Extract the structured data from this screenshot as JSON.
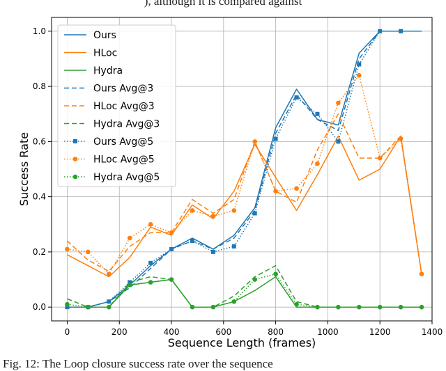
{
  "page": {
    "top_text": "), although it is compared against",
    "caption": "Fig. 12: The Loop closure success rate over the sequence"
  },
  "chart_data": {
    "type": "line",
    "xlabel": "Sequence Length (frames)",
    "ylabel": "Success Rate",
    "xlim": [
      -60,
      1400
    ],
    "ylim": [
      -0.05,
      1.05
    ],
    "xticks": [
      0,
      200,
      400,
      600,
      800,
      1000,
      1200,
      1400
    ],
    "yticks": [
      0.0,
      0.2,
      0.4,
      0.6,
      0.8,
      1.0
    ],
    "grid": true,
    "legend_position": "top-left",
    "colors": {
      "ours": "#1f77b4",
      "hloc": "#ff7f0e",
      "hydra": "#2ca02c"
    },
    "series": [
      {
        "name": "Ours",
        "color": "#1f77b4",
        "style": "solid",
        "marker": "none",
        "points": [
          [
            0,
            0.0
          ],
          [
            80,
            0.0
          ],
          [
            160,
            0.02
          ],
          [
            240,
            0.08
          ],
          [
            320,
            0.15
          ],
          [
            400,
            0.21
          ],
          [
            480,
            0.25
          ],
          [
            560,
            0.21
          ],
          [
            640,
            0.26
          ],
          [
            720,
            0.36
          ],
          [
            800,
            0.65
          ],
          [
            880,
            0.79
          ],
          [
            960,
            0.68
          ],
          [
            1040,
            0.66
          ],
          [
            1120,
            0.92
          ],
          [
            1200,
            1.0
          ],
          [
            1280,
            1.0
          ],
          [
            1360,
            1.0
          ]
        ]
      },
      {
        "name": "HLoc",
        "color": "#ff7f0e",
        "style": "solid",
        "marker": "none",
        "points": [
          [
            0,
            0.19
          ],
          [
            80,
            0.15
          ],
          [
            160,
            0.11
          ],
          [
            240,
            0.18
          ],
          [
            320,
            0.29
          ],
          [
            400,
            0.26
          ],
          [
            480,
            0.37
          ],
          [
            560,
            0.32
          ],
          [
            640,
            0.42
          ],
          [
            720,
            0.59
          ],
          [
            800,
            0.47
          ],
          [
            880,
            0.35
          ],
          [
            960,
            0.48
          ],
          [
            1040,
            0.62
          ],
          [
            1120,
            0.46
          ],
          [
            1200,
            0.5
          ],
          [
            1280,
            0.62
          ],
          [
            1360,
            0.12
          ]
        ]
      },
      {
        "name": "Hydra",
        "color": "#2ca02c",
        "style": "solid",
        "marker": "none",
        "points": [
          [
            0,
            0.0
          ],
          [
            80,
            0.0
          ],
          [
            160,
            0.0
          ],
          [
            240,
            0.08
          ],
          [
            320,
            0.09
          ],
          [
            400,
            0.1
          ],
          [
            480,
            0.0
          ],
          [
            560,
            0.0
          ],
          [
            640,
            0.02
          ],
          [
            720,
            0.06
          ],
          [
            800,
            0.11
          ],
          [
            880,
            0.0
          ],
          [
            960,
            0.0
          ],
          [
            1040,
            0.0
          ],
          [
            1120,
            0.0
          ],
          [
            1200,
            0.0
          ],
          [
            1280,
            0.0
          ],
          [
            1360,
            0.0
          ]
        ]
      },
      {
        "name": "Ours Avg@3",
        "color": "#1f77b4",
        "style": "dashed",
        "marker": "none",
        "points": [
          [
            0,
            0.0
          ],
          [
            80,
            0.0
          ],
          [
            160,
            0.02
          ],
          [
            240,
            0.07
          ],
          [
            320,
            0.14
          ],
          [
            400,
            0.21
          ],
          [
            480,
            0.24
          ],
          [
            560,
            0.21
          ],
          [
            640,
            0.25
          ],
          [
            720,
            0.35
          ],
          [
            800,
            0.63
          ],
          [
            880,
            0.77
          ],
          [
            960,
            0.68
          ],
          [
            1040,
            0.64
          ],
          [
            1120,
            0.9
          ],
          [
            1200,
            1.0
          ],
          [
            1280,
            1.0
          ],
          [
            1360,
            1.0
          ]
        ]
      },
      {
        "name": "HLoc Avg@3",
        "color": "#ff7f0e",
        "style": "dashed",
        "marker": "none",
        "points": [
          [
            0,
            0.24
          ],
          [
            80,
            0.17
          ],
          [
            160,
            0.13
          ],
          [
            240,
            0.22
          ],
          [
            320,
            0.27
          ],
          [
            400,
            0.27
          ],
          [
            480,
            0.39
          ],
          [
            560,
            0.34
          ],
          [
            640,
            0.39
          ],
          [
            720,
            0.6
          ],
          [
            800,
            0.42
          ],
          [
            880,
            0.38
          ],
          [
            960,
            0.57
          ],
          [
            1040,
            0.7
          ],
          [
            1120,
            0.54
          ],
          [
            1200,
            0.54
          ],
          [
            1280,
            0.62
          ],
          [
            1360,
            0.12
          ]
        ]
      },
      {
        "name": "Hydra Avg@3",
        "color": "#2ca02c",
        "style": "dashed",
        "marker": "none",
        "points": [
          [
            0,
            0.03
          ],
          [
            80,
            0.0
          ],
          [
            160,
            0.0
          ],
          [
            240,
            0.09
          ],
          [
            320,
            0.11
          ],
          [
            400,
            0.1
          ],
          [
            480,
            0.0
          ],
          [
            560,
            0.0
          ],
          [
            640,
            0.04
          ],
          [
            720,
            0.11
          ],
          [
            800,
            0.15
          ],
          [
            880,
            0.02
          ],
          [
            960,
            0.0
          ],
          [
            1040,
            0.0
          ],
          [
            1120,
            0.0
          ],
          [
            1200,
            0.0
          ],
          [
            1280,
            0.0
          ],
          [
            1360,
            0.0
          ]
        ]
      },
      {
        "name": "Ours Avg@5",
        "color": "#1f77b4",
        "style": "dotted",
        "marker": "square",
        "points": [
          [
            0,
            0.0
          ],
          [
            80,
            0.0
          ],
          [
            160,
            0.02
          ],
          [
            240,
            0.09
          ],
          [
            320,
            0.16
          ],
          [
            400,
            0.21
          ],
          [
            480,
            0.24
          ],
          [
            560,
            0.2
          ],
          [
            640,
            0.22
          ],
          [
            720,
            0.34
          ],
          [
            800,
            0.61
          ],
          [
            880,
            0.76
          ],
          [
            960,
            0.7
          ],
          [
            1040,
            0.6
          ],
          [
            1120,
            0.88
          ],
          [
            1200,
            1.0
          ],
          [
            1280,
            1.0
          ]
        ]
      },
      {
        "name": "HLoc Avg@5",
        "color": "#ff7f0e",
        "style": "dotted",
        "marker": "circle",
        "points": [
          [
            0,
            0.21
          ],
          [
            80,
            0.2
          ],
          [
            160,
            0.12
          ],
          [
            240,
            0.25
          ],
          [
            320,
            0.3
          ],
          [
            400,
            0.27
          ],
          [
            480,
            0.35
          ],
          [
            560,
            0.33
          ],
          [
            640,
            0.35
          ],
          [
            720,
            0.6
          ],
          [
            800,
            0.42
          ],
          [
            880,
            0.43
          ],
          [
            960,
            0.52
          ],
          [
            1040,
            0.74
          ],
          [
            1120,
            0.84
          ],
          [
            1200,
            0.54
          ],
          [
            1280,
            0.61
          ],
          [
            1360,
            0.12
          ]
        ]
      },
      {
        "name": "Hydra Avg@5",
        "color": "#2ca02c",
        "style": "dotted",
        "marker": "circle",
        "points": [
          [
            0,
            0.01
          ],
          [
            80,
            0.0
          ],
          [
            160,
            0.0
          ],
          [
            240,
            0.08
          ],
          [
            320,
            0.09
          ],
          [
            400,
            0.1
          ],
          [
            480,
            0.0
          ],
          [
            560,
            0.0
          ],
          [
            640,
            0.02
          ],
          [
            720,
            0.1
          ],
          [
            800,
            0.12
          ],
          [
            880,
            0.01
          ],
          [
            960,
            0.0
          ],
          [
            1040,
            0.0
          ],
          [
            1120,
            0.0
          ],
          [
            1200,
            0.0
          ],
          [
            1280,
            0.0
          ],
          [
            1360,
            0.0
          ]
        ]
      }
    ]
  }
}
